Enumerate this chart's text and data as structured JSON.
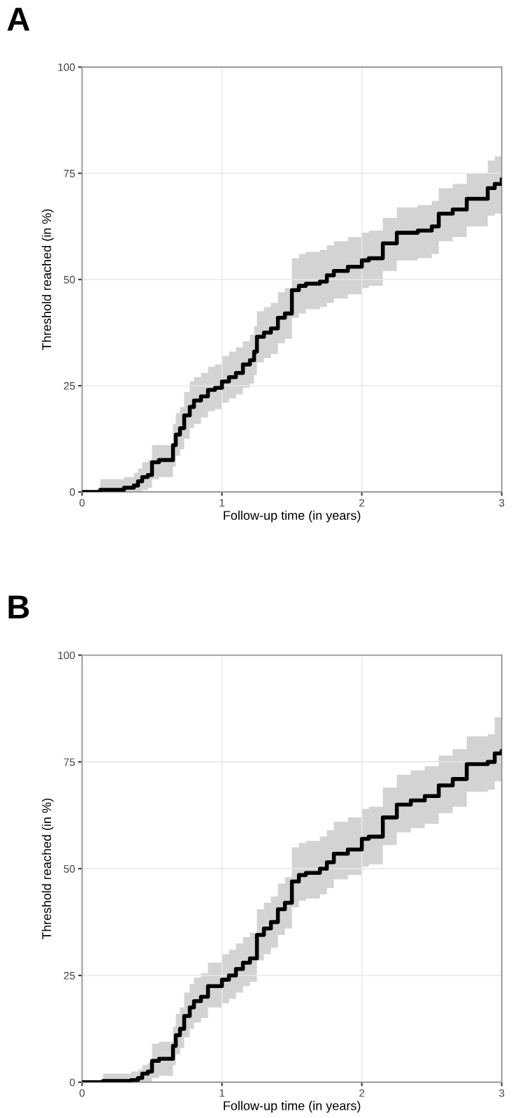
{
  "chart_data": [
    {
      "type": "step",
      "title": "A",
      "xlabel": "Follow-up time (in years)",
      "ylabel": "Threshold reached (in %)",
      "xlim": [
        0,
        3
      ],
      "ylim": [
        0,
        100
      ],
      "xticks": [
        0,
        1,
        2,
        3
      ],
      "yticks": [
        0,
        25,
        50,
        75,
        100
      ],
      "grid": true,
      "legend": false,
      "x": [
        0,
        0.13,
        0.3,
        0.37,
        0.4,
        0.43,
        0.47,
        0.5,
        0.55,
        0.65,
        0.67,
        0.7,
        0.73,
        0.77,
        0.8,
        0.85,
        0.9,
        0.95,
        1.0,
        1.05,
        1.1,
        1.15,
        1.2,
        1.23,
        1.25,
        1.3,
        1.35,
        1.4,
        1.45,
        1.5,
        1.55,
        1.6,
        1.7,
        1.75,
        1.8,
        1.9,
        2.0,
        2.05,
        2.15,
        2.25,
        2.4,
        2.5,
        2.55,
        2.65,
        2.75,
        2.9,
        2.95,
        3.0
      ],
      "series": [
        {
          "color": "#000000",
          "values": [
            0,
            0.5,
            1,
            1.5,
            2.5,
            3.5,
            4,
            7,
            7.5,
            11,
            13.5,
            15,
            18,
            20,
            21.5,
            22.5,
            24,
            24.5,
            26,
            27,
            28,
            30,
            31,
            33,
            36.5,
            37.5,
            38.5,
            41,
            42,
            47.5,
            48.5,
            49,
            49.5,
            51,
            52,
            53,
            54.5,
            55,
            58.5,
            61,
            61.5,
            62.5,
            65.5,
            66.5,
            69,
            71.5,
            72.5,
            73.5
          ],
          "lower": [
            0,
            0,
            0,
            0,
            0,
            0.5,
            1,
            3,
            3.5,
            6,
            8.5,
            10,
            12.5,
            15,
            16,
            17.5,
            19,
            19.5,
            21,
            22,
            23,
            24.5,
            25.5,
            27.5,
            30.5,
            31.5,
            32.5,
            35,
            36,
            41,
            42,
            43,
            43.5,
            44.5,
            45.5,
            46.5,
            48,
            48.5,
            52,
            54.5,
            55,
            56,
            59,
            60,
            62.5,
            65,
            65.5,
            66
          ],
          "upper": [
            0,
            3,
            3.5,
            4.5,
            5.5,
            7,
            7.5,
            11,
            11,
            16,
            18.5,
            20,
            23.5,
            26,
            27,
            28,
            29.5,
            30,
            32,
            33,
            34,
            35.5,
            37,
            39,
            42.5,
            43.5,
            44.5,
            47,
            48,
            55,
            56,
            56.5,
            57,
            58,
            59,
            60,
            61,
            61.5,
            64.5,
            67,
            67.5,
            68.5,
            71.5,
            72.5,
            75,
            78,
            79,
            80
          ]
        }
      ]
    },
    {
      "type": "step",
      "title": "B",
      "xlabel": "Follow-up time (in years)",
      "ylabel": "Threshold reached (in %)",
      "xlim": [
        0,
        3
      ],
      "ylim": [
        0,
        100
      ],
      "xticks": [
        0,
        1,
        2,
        3
      ],
      "yticks": [
        0,
        25,
        50,
        75,
        100
      ],
      "grid": true,
      "legend": false,
      "x": [
        0,
        0.15,
        0.35,
        0.4,
        0.43,
        0.47,
        0.5,
        0.55,
        0.65,
        0.67,
        0.7,
        0.73,
        0.77,
        0.8,
        0.85,
        0.9,
        0.95,
        1.0,
        1.05,
        1.1,
        1.15,
        1.2,
        1.25,
        1.3,
        1.35,
        1.4,
        1.45,
        1.5,
        1.55,
        1.6,
        1.7,
        1.75,
        1.8,
        1.9,
        2.0,
        2.05,
        2.15,
        2.25,
        2.35,
        2.45,
        2.55,
        2.65,
        2.75,
        2.9,
        2.95,
        3.0
      ],
      "series": [
        {
          "color": "#000000",
          "values": [
            0,
            0.3,
            0.5,
            1,
            2,
            2.5,
            5,
            5.5,
            8.5,
            11,
            12.5,
            15.5,
            17.5,
            19,
            20,
            22.5,
            22.5,
            24,
            25,
            26.5,
            28,
            29,
            34.5,
            36,
            37.5,
            40.5,
            42,
            47,
            48.5,
            49,
            50,
            51.5,
            53.5,
            54.5,
            57,
            57.5,
            62,
            65,
            66,
            67,
            69.5,
            71,
            74.5,
            75,
            77,
            77.5
          ],
          "lower": [
            0,
            0,
            0,
            0,
            0,
            0,
            1,
            1.5,
            4,
            6.5,
            8,
            10.5,
            12.5,
            14,
            15,
            17.5,
            17.5,
            18.5,
            19.5,
            21,
            22.5,
            23.5,
            28.5,
            30,
            31.5,
            34.5,
            36,
            41,
            42.5,
            43,
            44,
            45.5,
            47.5,
            48.5,
            50.5,
            51,
            55.5,
            58.5,
            59.5,
            60.5,
            63,
            64.5,
            68,
            68.5,
            70.5,
            71
          ],
          "upper": [
            0,
            2,
            2.5,
            3,
            4,
            4.5,
            9,
            9.5,
            13,
            16,
            17.5,
            21,
            23,
            24.5,
            25.5,
            28,
            28,
            30,
            31,
            32.5,
            34,
            35,
            40.5,
            42,
            43.5,
            46.5,
            48,
            55,
            56,
            56.5,
            57.5,
            59,
            61,
            62,
            64,
            64.5,
            69,
            72,
            73,
            74,
            76.5,
            78,
            81,
            81.5,
            85.5,
            86
          ]
        }
      ]
    }
  ]
}
